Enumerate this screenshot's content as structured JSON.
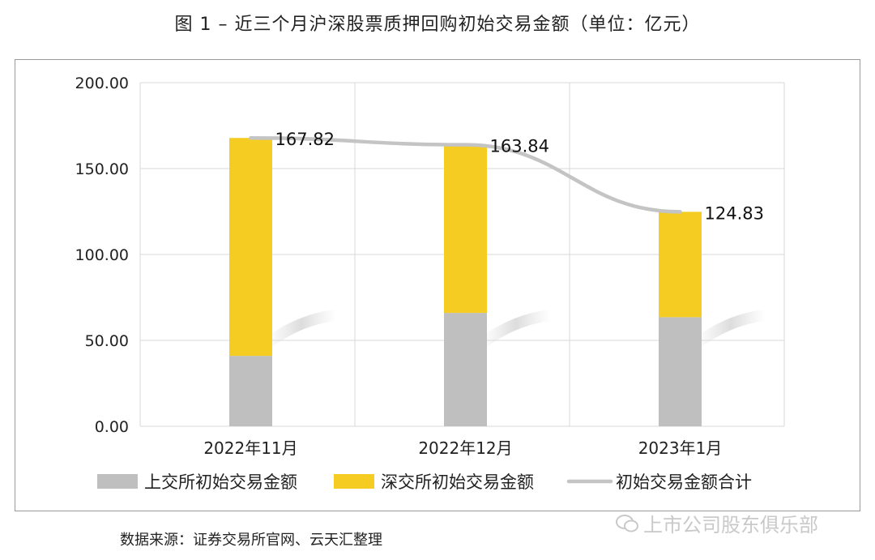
{
  "title": "图 1 –  近三个月沪深股票质押回购初始交易金额（单位：亿元）",
  "source_note": "数据来源：证券交易所官网、云天汇整理",
  "watermark": "上市公司股东俱乐部",
  "colors": {
    "sse": "#bfbfbf",
    "szse": "#f4cc22",
    "total": "#c4c4c4",
    "grid": "#d9d9d9"
  },
  "chart_data": {
    "type": "bar",
    "stacked": true,
    "categories": [
      "2022年11月",
      "2022年12月",
      "2023年1月"
    ],
    "series": [
      {
        "name": "上交所初始交易金额",
        "values": [
          41.0,
          66.0,
          63.5
        ]
      },
      {
        "name": "深交所初始交易金额",
        "values": [
          126.82,
          97.84,
          61.33
        ]
      }
    ],
    "line": {
      "name": "初始交易金额合计",
      "values": [
        167.82,
        163.84,
        124.83
      ]
    },
    "data_labels": [
      "167.82",
      "163.84",
      "124.83"
    ],
    "yticks": [
      "0.00",
      "50.00",
      "100.00",
      "150.00",
      "200.00"
    ],
    "ylim": [
      0,
      200
    ],
    "grid": true,
    "legend": "bottom"
  }
}
